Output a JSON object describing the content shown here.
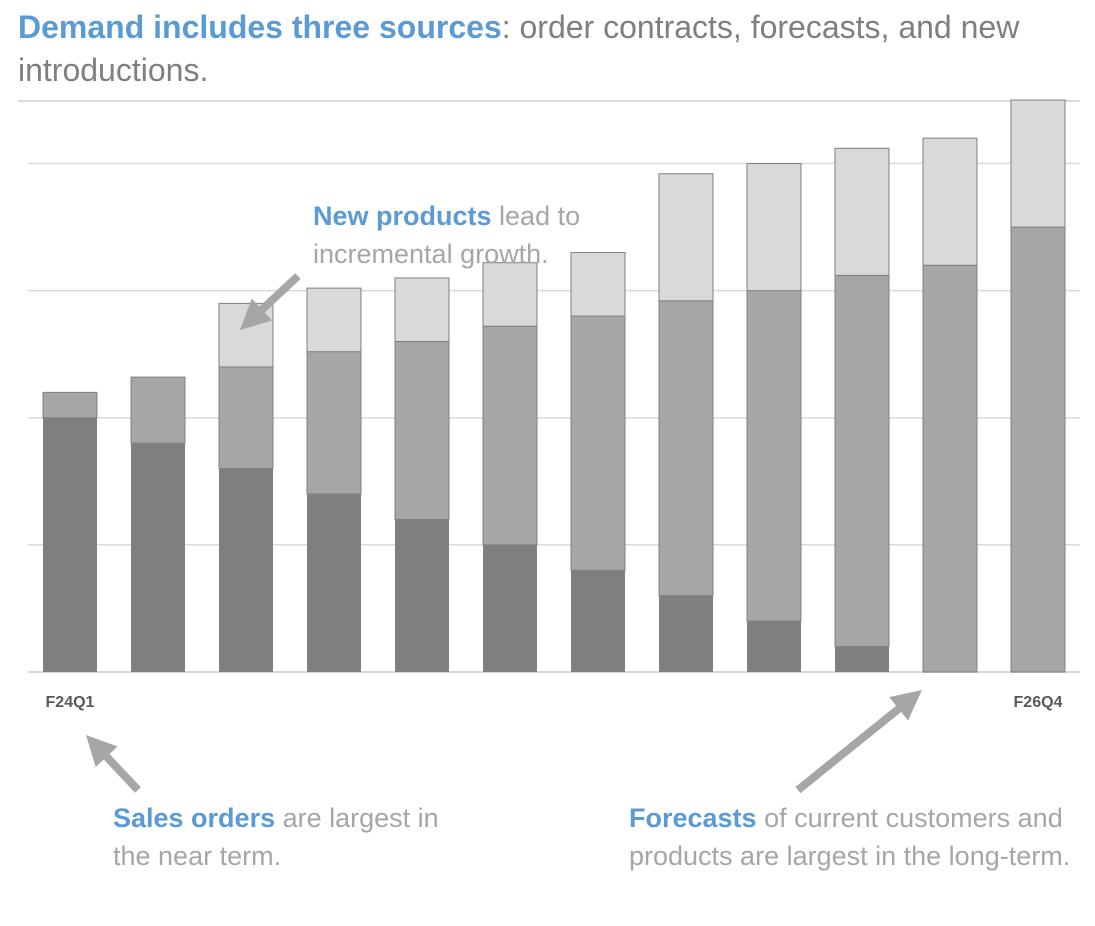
{
  "title": {
    "highlight": "Demand includes three sources",
    "rest": ": order contracts, forecasts, and new introductions."
  },
  "colors": {
    "accent": "#5b9bd5",
    "sales_orders": "#7f7f7f",
    "forecasts": "#a6a6a6",
    "new_products": "#d9d9d9",
    "gridline": "#d9d9d9"
  },
  "chart_data": {
    "type": "bar",
    "stacked": true,
    "categories": [
      "F24Q1",
      "",
      "",
      "",
      "",
      "",
      "",
      "",
      "",
      "",
      "",
      "F26Q4"
    ],
    "series": [
      {
        "name": "Sales orders",
        "color": "#7f7f7f",
        "values": [
          100,
          90,
          80,
          70,
          60,
          50,
          40,
          30,
          20,
          10,
          0,
          0
        ]
      },
      {
        "name": "Forecasts",
        "color": "#a6a6a6",
        "values": [
          10,
          26,
          40,
          56,
          70,
          86,
          100,
          116,
          130,
          146,
          160,
          175
        ]
      },
      {
        "name": "New products",
        "color": "#d9d9d9",
        "values": [
          0,
          0,
          25,
          25,
          25,
          25,
          25,
          50,
          50,
          50,
          50,
          50
        ]
      }
    ],
    "ylim": [
      0,
      225
    ],
    "gridlines": [
      50,
      100,
      150,
      200
    ],
    "y_tick_labels": false,
    "legend": "none",
    "annotations": [
      {
        "highlight": "New products",
        "text": " lead to incremental growth."
      },
      {
        "highlight": "Sales orders",
        "text": " are largest in the near term."
      },
      {
        "highlight": "Forecasts",
        "text": " of current customers and products are largest in the long-term."
      }
    ]
  }
}
